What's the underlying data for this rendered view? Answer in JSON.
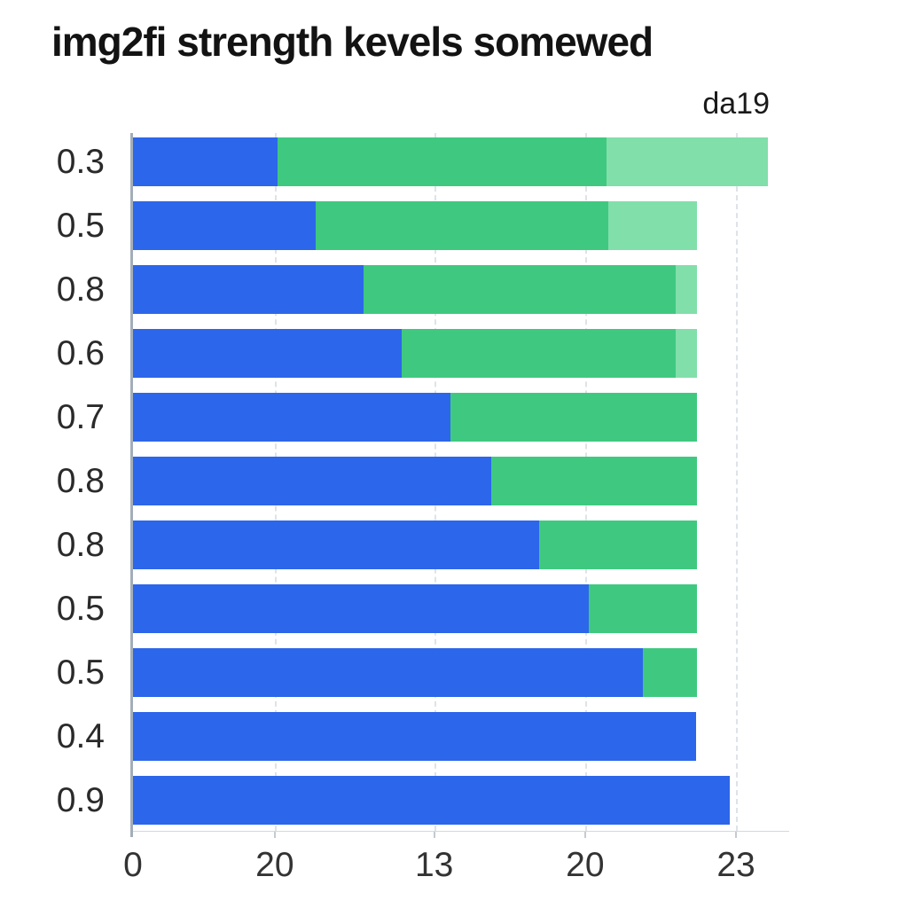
{
  "title": "img2fi strength kevels somewed",
  "annotation": "da19",
  "colors": {
    "blue": "#2c66ea",
    "green": "#3fc980",
    "light_green": "#81dfaa",
    "axis": "#a3aeb8",
    "gridline": "#d9dfe4",
    "title_text": "#131313",
    "label_text": "#2a2a2a"
  },
  "chart_data": {
    "type": "bar",
    "orientation": "horizontal",
    "stacked": true,
    "grid": "vertical-dashed",
    "legend": null,
    "title": "img2fi strength kevels somewed",
    "categories": [
      "0.3",
      "0.5",
      "0.8",
      "0.6",
      "0.7",
      "0.8",
      "0.8",
      "0.5",
      "0.5",
      "0.4",
      "0.9"
    ],
    "x_tick_labels": [
      "0",
      "20",
      "13",
      "20",
      "23"
    ],
    "x_tick_positions_pct": [
      0,
      21.6,
      45.9,
      68.9,
      91.9
    ],
    "series": [
      {
        "name": "blue",
        "color_key": "blue",
        "values_pct": [
          22.0,
          27.8,
          35.1,
          40.9,
          48.4,
          54.6,
          61.9,
          69.5,
          77.7,
          85.8,
          91.0
        ]
      },
      {
        "name": "green",
        "color_key": "green",
        "values_pct": [
          50.1,
          44.6,
          47.6,
          41.8,
          37.5,
          31.3,
          24.0,
          16.4,
          8.2,
          0,
          0
        ]
      },
      {
        "name": "light-green",
        "color_key": "light_green",
        "values_pct": [
          24.7,
          13.5,
          3.2,
          3.2,
          0,
          0,
          0,
          0,
          0,
          0,
          0
        ]
      }
    ]
  }
}
